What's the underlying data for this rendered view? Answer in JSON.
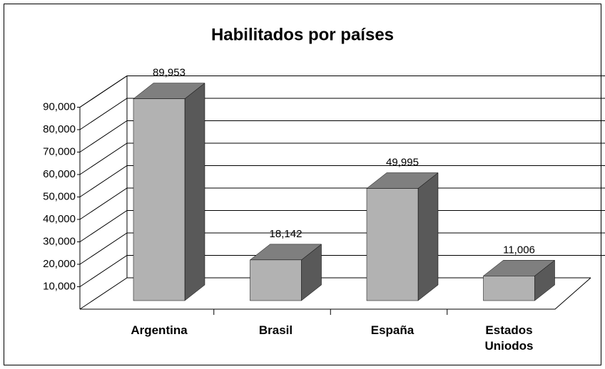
{
  "chart_data": {
    "type": "bar3d",
    "title": "Habilitados por países",
    "categories": [
      "Argentina",
      "Brasil",
      "España",
      "Estados Uniodos"
    ],
    "values": [
      89953,
      18142,
      49995,
      11006
    ],
    "value_labels": [
      "89,953",
      "18,142",
      "49,995",
      "11,006"
    ],
    "color": "#b2b2b2",
    "ylim": [
      0,
      90000
    ],
    "yticks": [
      {
        "value": 10000,
        "label": "10,000"
      },
      {
        "value": 20000,
        "label": "20,000"
      },
      {
        "value": 30000,
        "label": "30,000"
      },
      {
        "value": 40000,
        "label": "40,000"
      },
      {
        "value": 50000,
        "label": "50,000"
      },
      {
        "value": 60000,
        "label": "60,000"
      },
      {
        "value": 70000,
        "label": "70,000"
      },
      {
        "value": 80000,
        "label": "80,000"
      },
      {
        "value": 90000,
        "label": "90,000"
      }
    ],
    "grid": true
  }
}
